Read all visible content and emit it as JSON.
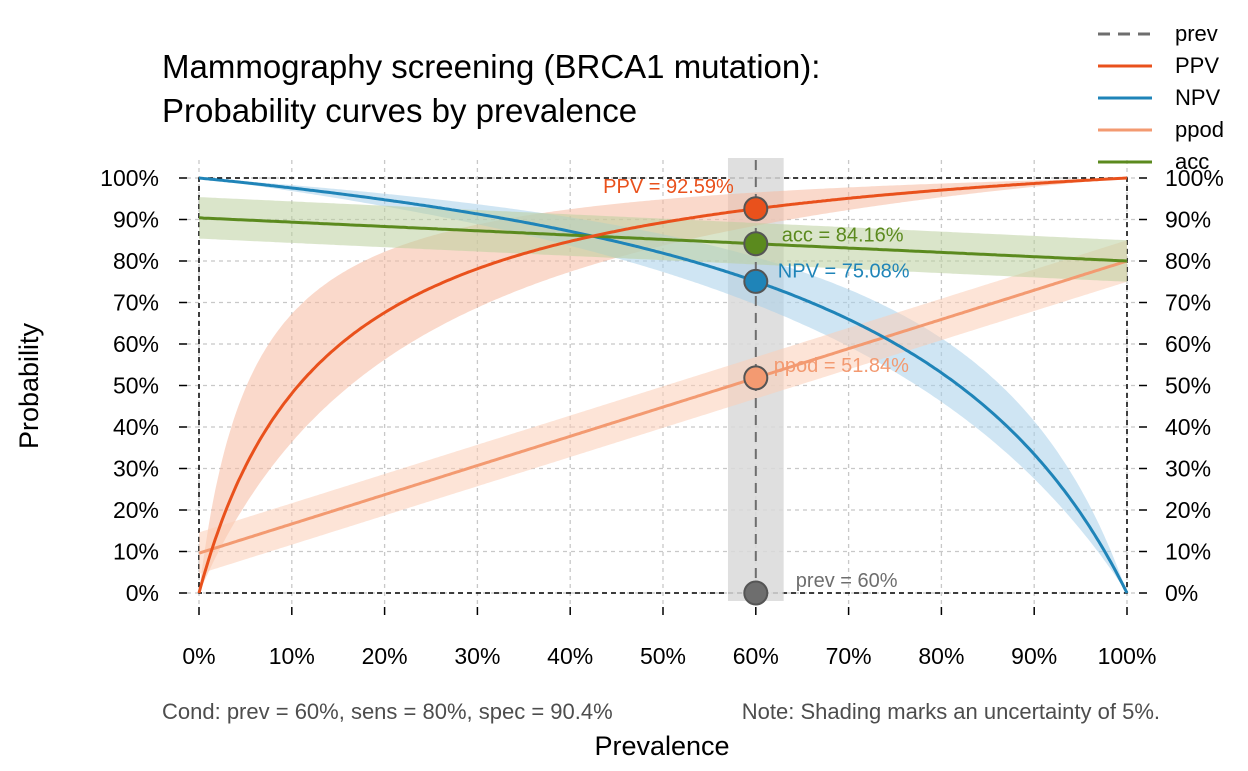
{
  "chart_data": {
    "type": "line",
    "title": [
      "Mammography screening (BRCA1 mutation):",
      "Probability curves by prevalence"
    ],
    "xlabel": "Prevalence",
    "ylabel": "Probability",
    "xlim": [
      0,
      100
    ],
    "ylim": [
      0,
      100
    ],
    "x_ticks": [
      "0%",
      "10%",
      "20%",
      "30%",
      "40%",
      "50%",
      "60%",
      "70%",
      "80%",
      "90%",
      "100%"
    ],
    "y_ticks": [
      "0%",
      "10%",
      "20%",
      "30%",
      "40%",
      "50%",
      "60%",
      "70%",
      "80%",
      "90%",
      "100%"
    ],
    "grid": true,
    "legend_position": "top-right",
    "condition": {
      "prev": 60,
      "sens": 80,
      "spec": 90.4,
      "uncertainty": 5
    },
    "note": "Cond:  prev = 60%, sens = 80%, spec = 90.4%",
    "note2": "Note:  Shading marks an uncertainty of 5%.",
    "legend": [
      {
        "key": "prev",
        "name": "prev",
        "color": "#6e6e6e",
        "dashed": true
      },
      {
        "key": "ppv",
        "name": "PPV",
        "color": "#e9511c",
        "dashed": false
      },
      {
        "key": "npv",
        "name": "NPV",
        "color": "#1f84b8",
        "dashed": false
      },
      {
        "key": "ppod",
        "name": "ppod",
        "color": "#f39a71",
        "dashed": false
      },
      {
        "key": "acc",
        "name": "acc",
        "color": "#5b8a1e",
        "dashed": false
      }
    ],
    "points": [
      {
        "key": "ppv",
        "x": 60,
        "y": 92.59,
        "label": "PPV = 92.59%",
        "color": "#e9511c",
        "band": "#f6b9a0",
        "anchor": "end"
      },
      {
        "key": "acc",
        "x": 60,
        "y": 84.16,
        "label": "acc = 84.16%",
        "color": "#5b8a1e",
        "band": "#bccf9e",
        "anchor": "start"
      },
      {
        "key": "npv",
        "x": 60,
        "y": 75.08,
        "label": "NPV = 75.08%",
        "color": "#1f84b8",
        "band": "#a8d0ea",
        "anchor": "start"
      },
      {
        "key": "ppod",
        "x": 60,
        "y": 51.84,
        "label": "ppod = 51.84%",
        "color": "#f39a71",
        "band": "#fbcdb6",
        "anchor": "start"
      },
      {
        "key": "prev",
        "x": 60,
        "y": 0,
        "label": "prev = 60%",
        "color": "#6e6e6e",
        "band": "#d9d9d9",
        "anchor": "start"
      }
    ]
  }
}
